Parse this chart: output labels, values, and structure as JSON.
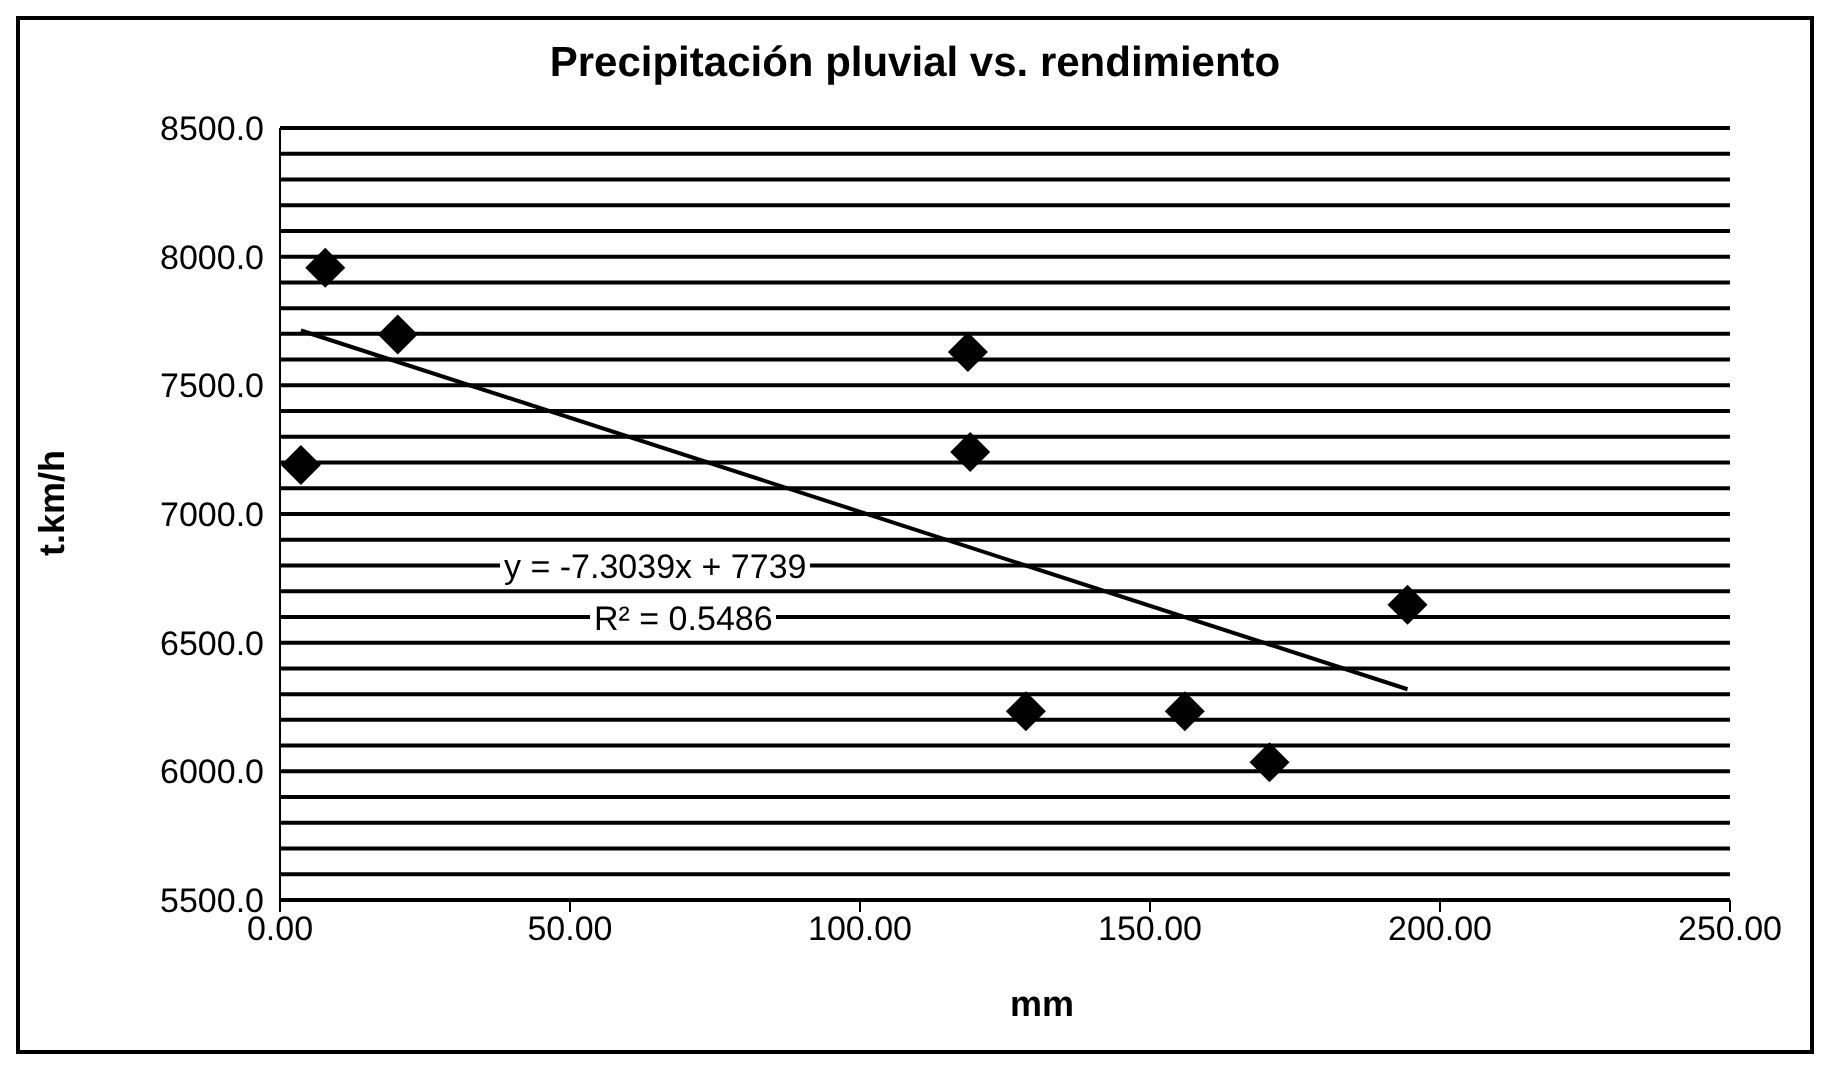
{
  "chart_data": {
    "type": "scatter",
    "title": "Precipitación pluvial vs. rendimiento",
    "xlabel": "mm",
    "ylabel": "t.km/h",
    "xlim": [
      0,
      250
    ],
    "xticks": [
      {
        "value": 0,
        "label": "0.00"
      },
      {
        "value": 50,
        "label": "50.00"
      },
      {
        "value": 100,
        "label": "100.00"
      },
      {
        "value": 150,
        "label": "150.00"
      },
      {
        "value": 200,
        "label": "200.00"
      },
      {
        "value": 250,
        "label": "250.00"
      }
    ],
    "ylim": [
      5500,
      8500
    ],
    "yticks": [
      {
        "value": 5500,
        "label": "5500.0"
      },
      {
        "value": 5600,
        "label": null
      },
      {
        "value": 5700,
        "label": null
      },
      {
        "value": 5800,
        "label": null
      },
      {
        "value": 5900,
        "label": null
      },
      {
        "value": 6000,
        "label": "6000.0"
      },
      {
        "value": 6100,
        "label": null
      },
      {
        "value": 6200,
        "label": null
      },
      {
        "value": 6300,
        "label": null
      },
      {
        "value": 6400,
        "label": null
      },
      {
        "value": 6500,
        "label": "6500.0"
      },
      {
        "value": 6600,
        "label": null
      },
      {
        "value": 6700,
        "label": null
      },
      {
        "value": 6800,
        "label": null
      },
      {
        "value": 6900,
        "label": null
      },
      {
        "value": 7000,
        "label": "7000.0"
      },
      {
        "value": 7100,
        "label": null
      },
      {
        "value": 7200,
        "label": null
      },
      {
        "value": 7300,
        "label": null
      },
      {
        "value": 7400,
        "label": null
      },
      {
        "value": 7500,
        "label": "7500.0"
      },
      {
        "value": 7600,
        "label": null
      },
      {
        "value": 7700,
        "label": null
      },
      {
        "value": 7800,
        "label": null
      },
      {
        "value": 7900,
        "label": null
      },
      {
        "value": 8000,
        "label": "8000.0"
      },
      {
        "value": 8100,
        "label": null
      },
      {
        "value": 8200,
        "label": null
      },
      {
        "value": 8300,
        "label": null
      },
      {
        "value": 8400,
        "label": null
      },
      {
        "value": 8500,
        "label": "8500.0"
      }
    ],
    "grid": "y",
    "legend": false,
    "series": [
      {
        "color": "#000000",
        "marker": "diamond",
        "x": [
          3.6,
          7.8,
          20.3,
          118.6,
          119,
          128.6,
          156,
          170.6,
          194.4
        ],
        "values": [
          7190,
          7957,
          7698,
          7630,
          7241,
          6233,
          6233,
          6035,
          6647
        ]
      },
      {
        "type": "line",
        "color": "#000000",
        "line_style": "solid",
        "x": [
          3.6,
          194.4
        ],
        "values": [
          7713,
          6319
        ]
      }
    ],
    "annotations": [
      "y = -7.3039x + 7739",
      "R² = 0.5486"
    ]
  }
}
